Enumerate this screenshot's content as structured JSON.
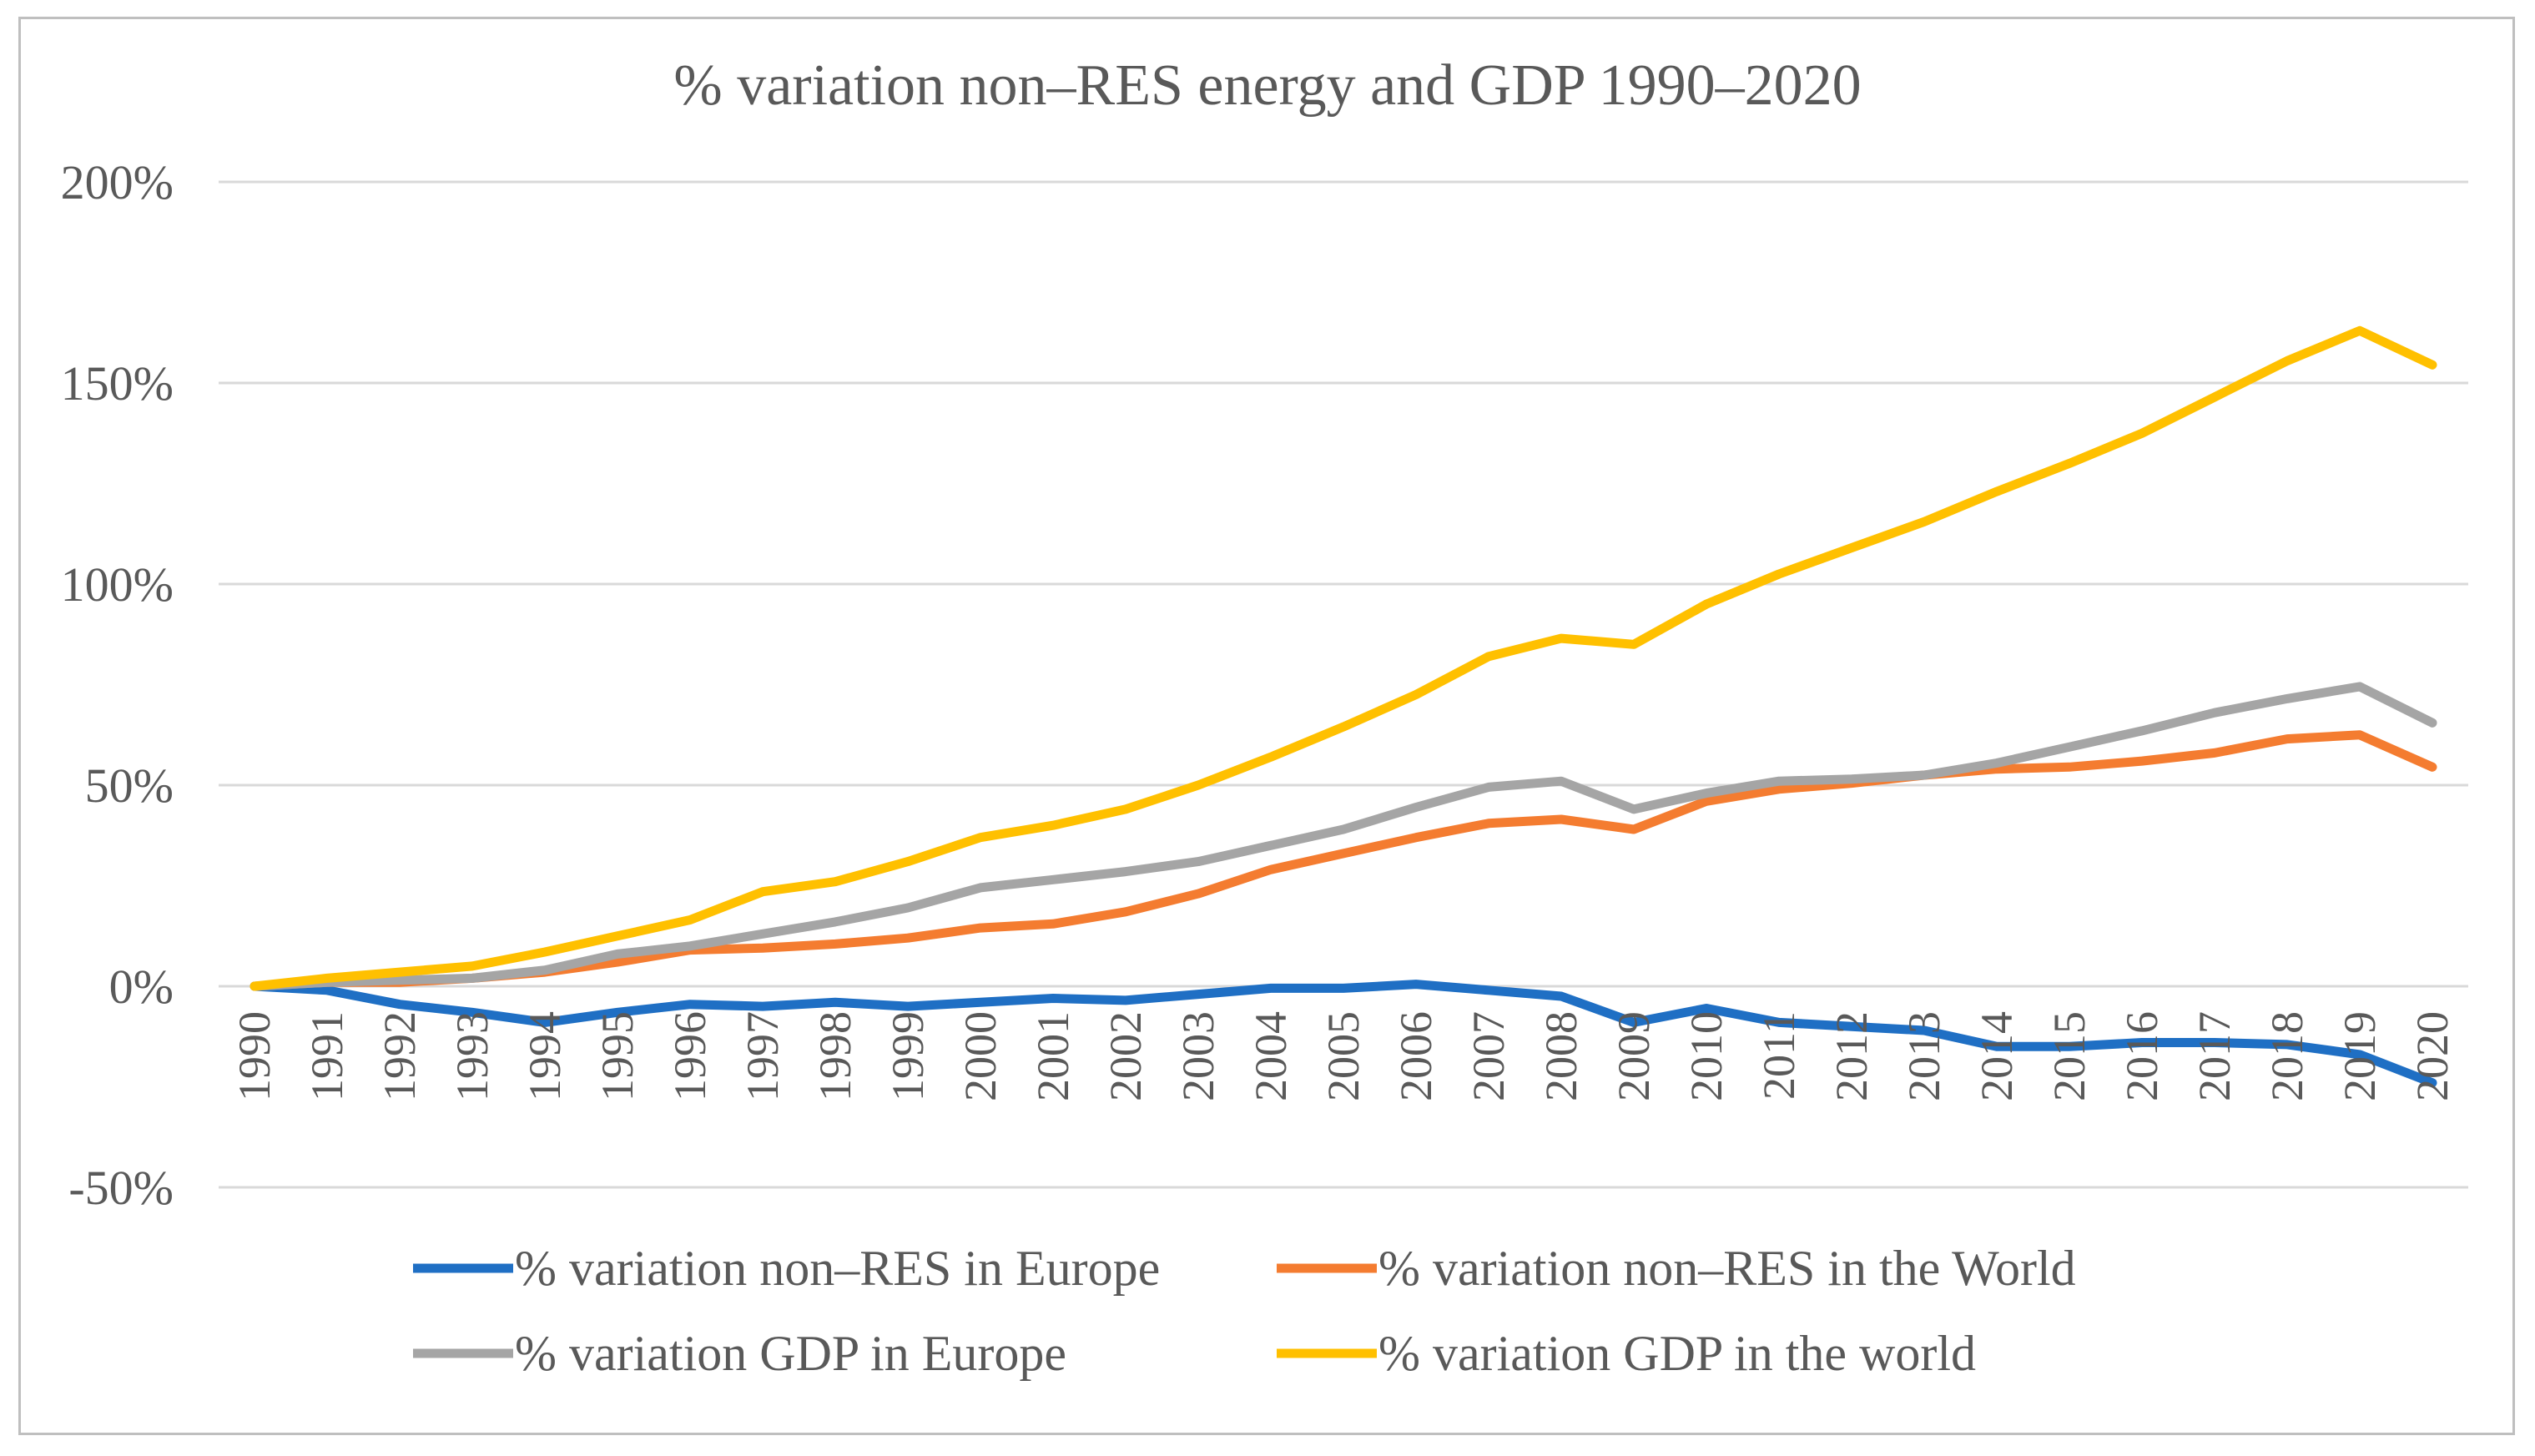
{
  "chart_data": {
    "type": "line",
    "title": "% variation  non–RES energy and GDP 1990–2020",
    "xlabel": "",
    "ylabel": "",
    "ylim": [
      -0.5,
      2.0
    ],
    "y_ticks": [
      -0.5,
      0,
      0.5,
      1.0,
      1.5,
      2.0
    ],
    "y_tick_labels": [
      "-50%",
      "0%",
      "50%",
      "100%",
      "150%",
      "200%"
    ],
    "grid": true,
    "legend_position": "bottom",
    "x": [
      "1990",
      "1991",
      "1992",
      "1993",
      "1994",
      "1995",
      "1996",
      "1997",
      "1998",
      "1999",
      "2000",
      "2001",
      "2002",
      "2003",
      "2004",
      "2005",
      "2006",
      "2007",
      "2008",
      "2009",
      "2010",
      "2011",
      "2012",
      "2013",
      "2014",
      "2015",
      "2016",
      "2017",
      "2018",
      "2019",
      "2020"
    ],
    "series": [
      {
        "name": "% variation non–RES  in Europe",
        "color": "#1f6fc4",
        "values": [
          0.0,
          -0.01,
          -0.045,
          -0.065,
          -0.09,
          -0.065,
          -0.045,
          -0.05,
          -0.04,
          -0.05,
          -0.04,
          -0.03,
          -0.035,
          -0.02,
          -0.005,
          -0.005,
          0.005,
          -0.01,
          -0.025,
          -0.09,
          -0.055,
          -0.09,
          -0.1,
          -0.11,
          -0.15,
          -0.15,
          -0.14,
          -0.14,
          -0.145,
          -0.17,
          -0.24
        ]
      },
      {
        "name": "% variation non–RES in the World",
        "color": "#f47c30",
        "values": [
          0.0,
          0.01,
          0.01,
          0.02,
          0.035,
          0.06,
          0.09,
          0.095,
          0.105,
          0.12,
          0.145,
          0.155,
          0.185,
          0.23,
          0.29,
          0.33,
          0.37,
          0.405,
          0.415,
          0.39,
          0.46,
          0.49,
          0.505,
          0.525,
          0.54,
          0.545,
          0.56,
          0.58,
          0.615,
          0.625,
          0.545
        ]
      },
      {
        "name": "% variation GDP in Europe",
        "color": "#a5a5a5",
        "values": [
          0.0,
          0.01,
          0.015,
          0.02,
          0.04,
          0.08,
          0.1,
          0.13,
          0.16,
          0.195,
          0.245,
          0.265,
          0.285,
          0.31,
          0.35,
          0.39,
          0.445,
          0.495,
          0.51,
          0.44,
          0.48,
          0.51,
          0.515,
          0.525,
          0.555,
          0.595,
          0.635,
          0.68,
          0.715,
          0.745,
          0.655
        ]
      },
      {
        "name": "% variation GDP in the world",
        "color": "#ffc000",
        "values": [
          0.0,
          0.02,
          0.035,
          0.05,
          0.085,
          0.125,
          0.165,
          0.235,
          0.26,
          0.31,
          0.37,
          0.4,
          0.44,
          0.5,
          0.57,
          0.645,
          0.725,
          0.82,
          0.865,
          0.85,
          0.95,
          1.025,
          1.09,
          1.155,
          1.23,
          1.3,
          1.375,
          1.465,
          1.555,
          1.63,
          1.545
        ]
      }
    ]
  }
}
